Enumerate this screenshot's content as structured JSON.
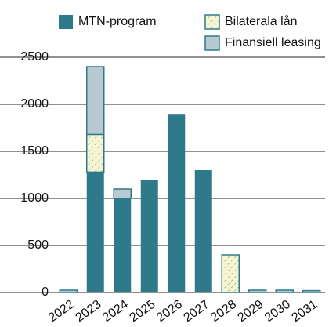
{
  "chart_data": {
    "type": "stacked_bar",
    "categories": [
      "2022",
      "2023",
      "2024",
      "2025",
      "2026",
      "2027",
      "2028",
      "2029",
      "2030",
      "2031"
    ],
    "series": [
      {
        "name": "MTN-program",
        "color": "#2e7a8a",
        "values": [
          null,
          1280,
          1000,
          1200,
          1890,
          1300,
          null,
          null,
          null,
          null
        ]
      },
      {
        "name": "Bilaterala lån",
        "color": "#f6f4d2",
        "values": [
          null,
          400,
          null,
          null,
          null,
          null,
          400,
          null,
          null,
          null
        ]
      },
      {
        "name": "Finansiell leasing",
        "color": "#b9c9d2",
        "values": [
          25,
          720,
          100,
          null,
          null,
          null,
          null,
          25,
          25,
          20
        ]
      }
    ],
    "ylim": [
      0,
      2500
    ],
    "yticks": [
      0,
      500,
      1000,
      1500,
      2000,
      2500
    ],
    "grid": true
  }
}
